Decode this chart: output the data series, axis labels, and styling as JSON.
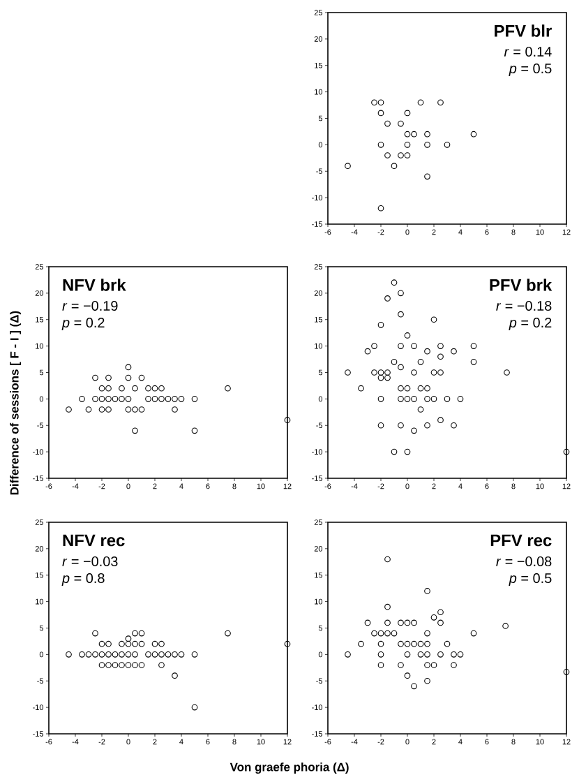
{
  "chart_data": [
    {
      "type": "scatter",
      "color": "#000000",
      "marker": "circle",
      "xlim": [
        -6,
        12
      ],
      "ylim": [
        -15,
        25
      ],
      "xticks": [
        -6,
        -4,
        -2,
        0,
        2,
        4,
        6,
        8,
        10,
        12
      ],
      "yticks": [
        -15,
        -10,
        -5,
        0,
        5,
        10,
        15,
        20,
        25
      ],
      "annotations": [
        "PFV blr",
        "*r* = 0.14",
        "*p* = 0.5"
      ],
      "x": [
        -2.5,
        -2,
        1,
        2.5,
        -2,
        0,
        -1.5,
        -0.5,
        0,
        0.5,
        1.5,
        5,
        -2,
        0,
        1.5,
        3,
        -1.5,
        -0.5,
        0,
        -4.5,
        -1,
        1.5,
        -2
      ],
      "values": [
        8,
        8,
        8,
        8,
        6,
        6,
        4,
        4,
        2,
        2,
        2,
        2,
        0,
        0,
        0,
        0,
        -2,
        -2,
        -2,
        -4,
        -4,
        -6,
        -12
      ]
    },
    {
      "type": "scatter",
      "color": "#000000",
      "marker": "circle",
      "xlim": [
        -6,
        12
      ],
      "ylim": [
        -15,
        25
      ],
      "xticks": [
        -6,
        -4,
        -2,
        0,
        2,
        4,
        6,
        8,
        10,
        12
      ],
      "yticks": [
        -15,
        -10,
        -5,
        0,
        5,
        10,
        15,
        20,
        25
      ],
      "ylabel": "Difference of sessions [ F - I ] (Δ)",
      "annotations": [
        "NFV brk",
        "*r* = −0.19",
        "*p* = 0.2"
      ],
      "x": [
        0,
        -2.5,
        -1.5,
        0,
        1,
        -2,
        -1.5,
        -0.5,
        0.5,
        1.5,
        2,
        2.5,
        7.5,
        -3.5,
        -2.5,
        -2,
        -1.5,
        -1,
        -0.5,
        0,
        1.5,
        2,
        2.5,
        3,
        3.5,
        4,
        5,
        -4.5,
        -3,
        -2,
        -1.5,
        0,
        0.5,
        1,
        3.5,
        12,
        0.5,
        5
      ],
      "values": [
        6,
        4,
        4,
        4,
        4,
        2,
        2,
        2,
        2,
        2,
        2,
        2,
        2,
        0,
        0,
        0,
        0,
        0,
        0,
        0,
        0,
        0,
        0,
        0,
        0,
        0,
        0,
        -2,
        -2,
        -2,
        -2,
        -2,
        -2,
        -2,
        -2,
        -4,
        -6,
        -6
      ]
    },
    {
      "type": "scatter",
      "color": "#000000",
      "marker": "circle",
      "xlim": [
        -6,
        12
      ],
      "ylim": [
        -15,
        25
      ],
      "xticks": [
        -6,
        -4,
        -2,
        0,
        2,
        4,
        6,
        8,
        10,
        12
      ],
      "yticks": [
        -15,
        -10,
        -5,
        0,
        5,
        10,
        15,
        20,
        25
      ],
      "annotations": [
        "PFV brk",
        "*r* = −0.18",
        "*p* = 0.2"
      ],
      "x": [
        -1,
        -0.5,
        -1.5,
        -0.5,
        2,
        -2,
        0,
        -2.5,
        -0.5,
        0.5,
        2.5,
        5,
        -3,
        1.5,
        3.5,
        2.5,
        -1,
        1,
        5,
        -0.5,
        -4.5,
        -2.5,
        -2,
        -1.5,
        0.5,
        2,
        2.5,
        7.5,
        -2,
        -1.5,
        -3.5,
        -0.5,
        0,
        1,
        1.5,
        -2,
        -0.5,
        0,
        0.5,
        1.5,
        2,
        3,
        4,
        1,
        2.5,
        -2,
        -0.5,
        1.5,
        3.5,
        0.5,
        -1,
        0,
        12
      ],
      "values": [
        22,
        20,
        19,
        16,
        15,
        14,
        12,
        10,
        10,
        10,
        10,
        10,
        9,
        9,
        9,
        8,
        7,
        7,
        7,
        6,
        5,
        5,
        5,
        5,
        5,
        5,
        5,
        5,
        4,
        4,
        2,
        2,
        2,
        2,
        2,
        0,
        0,
        0,
        0,
        0,
        0,
        0,
        0,
        -2,
        -4,
        -5,
        -5,
        -5,
        -5,
        -6,
        -10,
        -10,
        -10
      ]
    },
    {
      "type": "scatter",
      "color": "#000000",
      "marker": "circle",
      "xlim": [
        -6,
        12
      ],
      "ylim": [
        -15,
        25
      ],
      "xticks": [
        -6,
        -4,
        -2,
        0,
        2,
        4,
        6,
        8,
        10,
        12
      ],
      "yticks": [
        -15,
        -10,
        -5,
        0,
        5,
        10,
        15,
        20,
        25
      ],
      "xlabel": "Von graefe phoria (Δ)",
      "annotations": [
        "NFV rec",
        "*r* = −0.03",
        "*p* = 0.8"
      ],
      "x": [
        -2.5,
        0.5,
        1,
        7.5,
        0,
        -2,
        -1.5,
        -0.5,
        0,
        0.5,
        1,
        2,
        2.5,
        12,
        -4.5,
        -3.5,
        -3,
        -2.5,
        -2,
        -1.5,
        -1,
        -0.5,
        0,
        0.5,
        1.5,
        2,
        2.5,
        3,
        3.5,
        4,
        5,
        -2,
        -1.5,
        -1,
        -0.5,
        0,
        0.5,
        1,
        2.5,
        3.5,
        5
      ],
      "values": [
        4,
        4,
        4,
        4,
        3,
        2,
        2,
        2,
        2,
        2,
        2,
        2,
        2,
        2,
        0,
        0,
        0,
        0,
        0,
        0,
        0,
        0,
        0,
        0,
        0,
        0,
        0,
        0,
        0,
        0,
        0,
        -2,
        -2,
        -2,
        -2,
        -2,
        -2,
        -2,
        -2,
        -4,
        -10
      ]
    },
    {
      "type": "scatter",
      "color": "#000000",
      "marker": "circle",
      "xlim": [
        -6,
        12
      ],
      "ylim": [
        -15,
        25
      ],
      "xticks": [
        -6,
        -4,
        -2,
        0,
        2,
        4,
        6,
        8,
        10,
        12
      ],
      "yticks": [
        -15,
        -10,
        -5,
        0,
        5,
        10,
        15,
        20,
        25
      ],
      "annotations": [
        "PFV rec",
        "*r* = −0.08",
        "*p* = 0.5"
      ],
      "x": [
        -1.5,
        1.5,
        -1.5,
        2.5,
        2,
        -3,
        -1.5,
        -0.5,
        0,
        0.5,
        2.5,
        7.4,
        -2.5,
        -2,
        -1.5,
        -1,
        1.5,
        5,
        -3.5,
        -2,
        -0.5,
        0,
        0.5,
        1,
        1.5,
        3,
        -4.5,
        -2,
        0,
        1,
        1.5,
        2.5,
        3.5,
        4,
        -2,
        -0.5,
        1.5,
        2,
        3.5,
        0,
        1.5,
        0.5,
        12
      ],
      "values": [
        18,
        12,
        9,
        8,
        7,
        6,
        6,
        6,
        6,
        6,
        6,
        5.4,
        4,
        4,
        4,
        4,
        4,
        4,
        2,
        2,
        2,
        2,
        2,
        2,
        2,
        2,
        0,
        0,
        0,
        0,
        0,
        0,
        0,
        0,
        -2,
        -2,
        -2,
        -2,
        -2,
        -4,
        -5,
        -6,
        -3.3
      ]
    }
  ]
}
